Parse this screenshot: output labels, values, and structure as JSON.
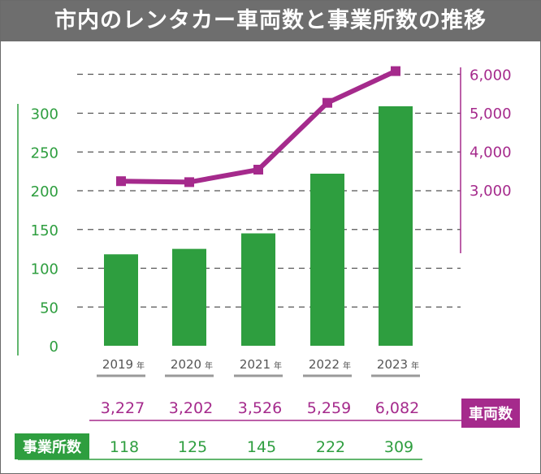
{
  "title": "市内のレンタカー車両数と事業所数の推移",
  "year_unit": "年",
  "colors": {
    "bar": "#2e9e3f",
    "line": "#a52a8c",
    "title_bg": "#6e6e6e",
    "grid": "#555555"
  },
  "chart_data": {
    "type": "bar+line",
    "categories": [
      "2019",
      "2020",
      "2021",
      "2022",
      "2023"
    ],
    "series": [
      {
        "name": "事業所数",
        "type": "bar",
        "axis": "left",
        "values": [
          118,
          125,
          145,
          222,
          309
        ]
      },
      {
        "name": "車両数",
        "type": "line",
        "axis": "right",
        "values": [
          3227,
          3202,
          3526,
          5259,
          6082
        ]
      }
    ],
    "left_axis": {
      "ticks": [
        0,
        50,
        100,
        150,
        200,
        250,
        300
      ],
      "tick_labels": [
        "0",
        "50",
        "100",
        "150",
        "200",
        "250",
        "300"
      ],
      "ylim": [
        0,
        300
      ]
    },
    "right_axis": {
      "ticks": [
        3000,
        4000,
        5000,
        6000
      ],
      "tick_labels": [
        "3,000",
        "4,000",
        "5,000",
        "6,000"
      ],
      "ylim": [
        3000,
        6000
      ]
    },
    "grid": true
  },
  "table": {
    "vehicles_label": "車両数",
    "vehicles_values": [
      "3,227",
      "3,202",
      "3,526",
      "5,259",
      "6,082"
    ],
    "offices_label": "事業所数",
    "offices_values": [
      "118",
      "125",
      "145",
      "222",
      "309"
    ]
  }
}
